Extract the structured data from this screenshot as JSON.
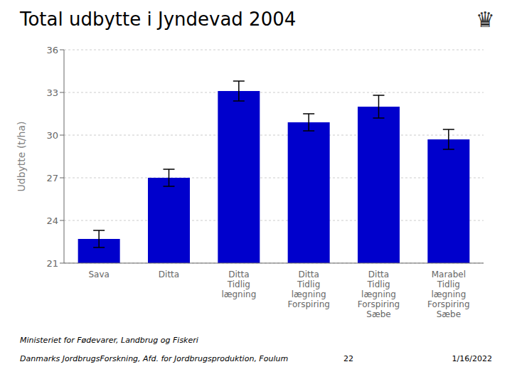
{
  "chart_data": {
    "type": "bar",
    "title": "Total udbytte i Jyndevad 2004",
    "ylabel": "Udbytte (t/ha)",
    "categories": [
      "Sava",
      "Ditta",
      "Ditta\nTidlig\nlægning",
      "Ditta\nTidlig\nlægning\nForspiring",
      "Ditta\nTidlig\nlægning\nForspiring\nSæbe",
      "Marabel\nTidlig\nlægning\nForspiring\nSæbe"
    ],
    "values": [
      22.7,
      27.0,
      33.1,
      30.9,
      32.0,
      29.7
    ],
    "errors": [
      0.6,
      0.6,
      0.7,
      0.6,
      0.8,
      0.7
    ],
    "color": "#0000CC",
    "ylim": [
      21,
      36
    ],
    "yticks": [
      21,
      24,
      27,
      30,
      33,
      36
    ],
    "grid": true,
    "annotations": [
      "Ministeriet for Fødevarer, Landbrug og Fiskeri",
      "Danmarks JordbrugsForskning, Afd. for Jordbrugsproduktion, Foulum",
      "22",
      "1/16/2022",
      "♛"
    ]
  }
}
